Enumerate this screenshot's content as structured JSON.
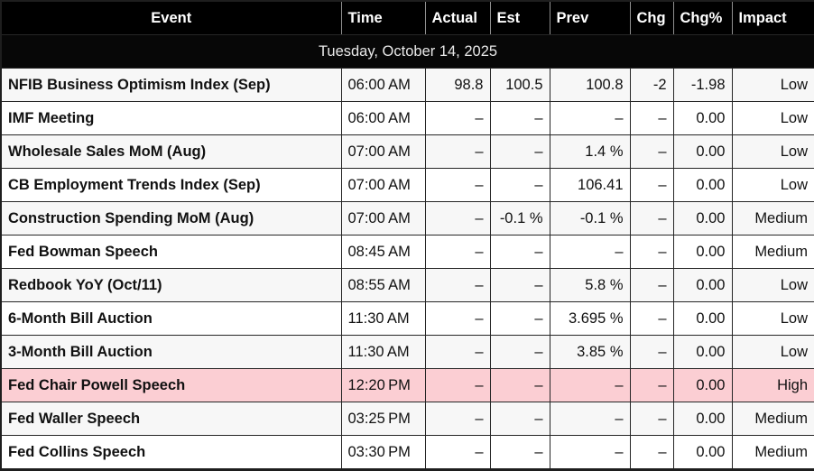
{
  "colors": {
    "header_bg": "#000000",
    "date_band_bg": "#070707",
    "row_bg": "#ffffff",
    "row_alt_bg": "#f7f7f7",
    "highlight_row_bg": "#fbced3",
    "border": "#262626",
    "header_text": "#ffffff",
    "body_text": "#111111"
  },
  "table": {
    "date_header": "Tuesday, October 14, 2025",
    "columns": [
      {
        "key": "event",
        "label": "Event"
      },
      {
        "key": "time",
        "label": "Time"
      },
      {
        "key": "actual",
        "label": "Actual"
      },
      {
        "key": "est",
        "label": "Est"
      },
      {
        "key": "prev",
        "label": "Prev"
      },
      {
        "key": "chg",
        "label": "Chg"
      },
      {
        "key": "chg_pct",
        "label": "Chg%"
      },
      {
        "key": "impact",
        "label": "Impact"
      }
    ],
    "rows": [
      {
        "event": "NFIB Business Optimism Index (Sep)",
        "time": "06:00 AM",
        "actual": "98.8",
        "est": "100.5",
        "prev": "100.8",
        "chg": "-2",
        "chg_pct": "-1.98",
        "impact": "Low"
      },
      {
        "event": "IMF Meeting",
        "time": "06:00 AM",
        "actual": "–",
        "est": "–",
        "prev": "–",
        "chg": "–",
        "chg_pct": "0.00",
        "impact": "Low"
      },
      {
        "event": "Wholesale Sales MoM (Aug)",
        "time": "07:00 AM",
        "actual": "–",
        "est": "–",
        "prev": "1.4 %",
        "chg": "–",
        "chg_pct": "0.00",
        "impact": "Low"
      },
      {
        "event": "CB Employment Trends Index (Sep)",
        "time": "07:00 AM",
        "actual": "–",
        "est": "–",
        "prev": "106.41",
        "chg": "–",
        "chg_pct": "0.00",
        "impact": "Low"
      },
      {
        "event": "Construction Spending MoM (Aug)",
        "time": "07:00 AM",
        "actual": "–",
        "est": "-0.1 %",
        "prev": "-0.1 %",
        "chg": "–",
        "chg_pct": "0.00",
        "impact": "Medium"
      },
      {
        "event": "Fed Bowman Speech",
        "time": "08:45 AM",
        "actual": "–",
        "est": "–",
        "prev": "–",
        "chg": "–",
        "chg_pct": "0.00",
        "impact": "Medium"
      },
      {
        "event": "Redbook YoY (Oct/11)",
        "time": "08:55 AM",
        "actual": "–",
        "est": "–",
        "prev": "5.8 %",
        "chg": "–",
        "chg_pct": "0.00",
        "impact": "Low"
      },
      {
        "event": "6-Month Bill Auction",
        "time": "11:30 AM",
        "actual": "–",
        "est": "–",
        "prev": "3.695 %",
        "chg": "–",
        "chg_pct": "0.00",
        "impact": "Low"
      },
      {
        "event": "3-Month Bill Auction",
        "time": "11:30 AM",
        "actual": "–",
        "est": "–",
        "prev": "3.85 %",
        "chg": "–",
        "chg_pct": "0.00",
        "impact": "Low"
      },
      {
        "event": "Fed Chair Powell Speech",
        "time": "12:20 PM",
        "actual": "–",
        "est": "–",
        "prev": "–",
        "chg": "–",
        "chg_pct": "0.00",
        "impact": "High"
      },
      {
        "event": "Fed Waller Speech",
        "time": "03:25 PM",
        "actual": "–",
        "est": "–",
        "prev": "–",
        "chg": "–",
        "chg_pct": "0.00",
        "impact": "Medium"
      },
      {
        "event": "Fed Collins Speech",
        "time": "03:30 PM",
        "actual": "–",
        "est": "–",
        "prev": "–",
        "chg": "–",
        "chg_pct": "0.00",
        "impact": "Medium"
      }
    ]
  }
}
